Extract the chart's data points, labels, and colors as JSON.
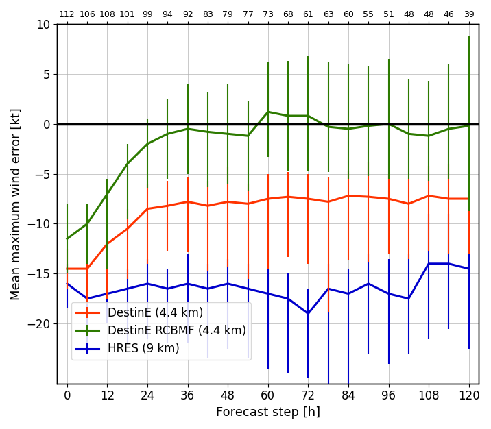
{
  "x_positions": [
    0,
    6,
    12,
    18,
    24,
    30,
    36,
    42,
    48,
    54,
    60,
    66,
    72,
    78,
    84,
    90,
    96,
    102,
    108,
    114,
    120
  ],
  "sample_counts": [
    "112",
    "106",
    "108",
    "101",
    "99",
    "94",
    "92",
    "83",
    "79",
    "77",
    "73",
    "68",
    "61",
    "63",
    "60",
    "55",
    "51",
    "48",
    "48",
    "46",
    "39"
  ],
  "destine_mean": [
    -14.5,
    -14.5,
    -12.0,
    -10.5,
    -8.5,
    -8.2,
    -7.8,
    -8.2,
    -7.8,
    -8.0,
    -7.5,
    -7.3,
    -7.5,
    -7.8,
    -7.2,
    -7.3,
    -7.5,
    -8.0,
    -7.2,
    -7.5,
    -7.5
  ],
  "destine_err_low": [
    2.0,
    3.5,
    5.5,
    5.0,
    5.5,
    4.5,
    5.0,
    6.5,
    6.5,
    7.5,
    7.0,
    6.0,
    6.5,
    11.0,
    6.5,
    6.5,
    5.5,
    5.5,
    5.5,
    5.5,
    5.5
  ],
  "destine_err_high": [
    2.0,
    2.0,
    2.0,
    2.0,
    2.5,
    2.5,
    2.5,
    2.5,
    3.5,
    2.0,
    2.5,
    2.5,
    2.5,
    2.5,
    2.5,
    3.5,
    2.5,
    2.5,
    3.0,
    3.5,
    7.5
  ],
  "rcbmf_mean": [
    -11.5,
    -10.0,
    -7.0,
    -4.0,
    -2.0,
    -1.0,
    -0.5,
    -0.8,
    -1.0,
    -1.2,
    1.2,
    0.8,
    0.8,
    -0.3,
    -0.5,
    -0.2,
    0.0,
    -1.0,
    -1.2,
    -0.5,
    -0.2
  ],
  "rcbmf_err_low": [
    3.5,
    4.0,
    7.5,
    5.5,
    4.5,
    4.5,
    4.5,
    5.5,
    5.0,
    5.5,
    4.5,
    5.5,
    5.5,
    4.5,
    5.0,
    5.0,
    5.5,
    4.5,
    4.5,
    5.0,
    8.5
  ],
  "rcbmf_err_high": [
    3.5,
    2.0,
    1.5,
    2.0,
    2.5,
    3.5,
    4.5,
    4.0,
    5.0,
    3.5,
    5.0,
    5.5,
    6.0,
    6.5,
    6.5,
    6.0,
    6.5,
    5.5,
    5.5,
    6.5,
    9.0
  ],
  "hres_mean": [
    -16.0,
    -17.5,
    -17.0,
    -16.5,
    -16.0,
    -16.5,
    -16.0,
    -16.5,
    -16.0,
    -16.5,
    -17.0,
    -17.5,
    -19.0,
    -16.5,
    -17.0,
    -16.0,
    -17.0,
    -17.5,
    -14.0,
    -14.0,
    -14.5
  ],
  "hres_err_low": [
    2.5,
    4.5,
    3.0,
    5.5,
    5.5,
    5.5,
    6.0,
    7.0,
    6.5,
    7.0,
    7.5,
    7.5,
    6.5,
    9.5,
    9.5,
    7.0,
    7.0,
    5.5,
    7.5,
    6.5,
    8.0
  ],
  "hres_err_high": [
    2.0,
    2.0,
    2.0,
    2.0,
    2.5,
    2.0,
    3.0,
    2.5,
    2.5,
    2.5,
    2.5,
    2.5,
    2.5,
    2.5,
    2.5,
    3.0,
    3.5,
    4.5,
    5.0,
    5.0,
    2.0
  ],
  "destine_color": "#ff3300",
  "rcbmf_color": "#2d7a00",
  "hres_color": "#0000cc",
  "xlabel": "Forecast step [h]",
  "ylabel": "Mean maximum wind error [kt]",
  "ylim": [
    -26,
    10
  ],
  "yticks": [
    -20,
    -15,
    -10,
    -5,
    0,
    5,
    10
  ],
  "xlim": [
    -3,
    123
  ],
  "xticks": [
    0,
    12,
    24,
    36,
    48,
    60,
    72,
    84,
    96,
    108,
    120
  ],
  "legend_labels": [
    "DestinE (4.4 km)",
    "DestinE RCBMF (4.4 km)",
    "HRES (9 km)"
  ]
}
